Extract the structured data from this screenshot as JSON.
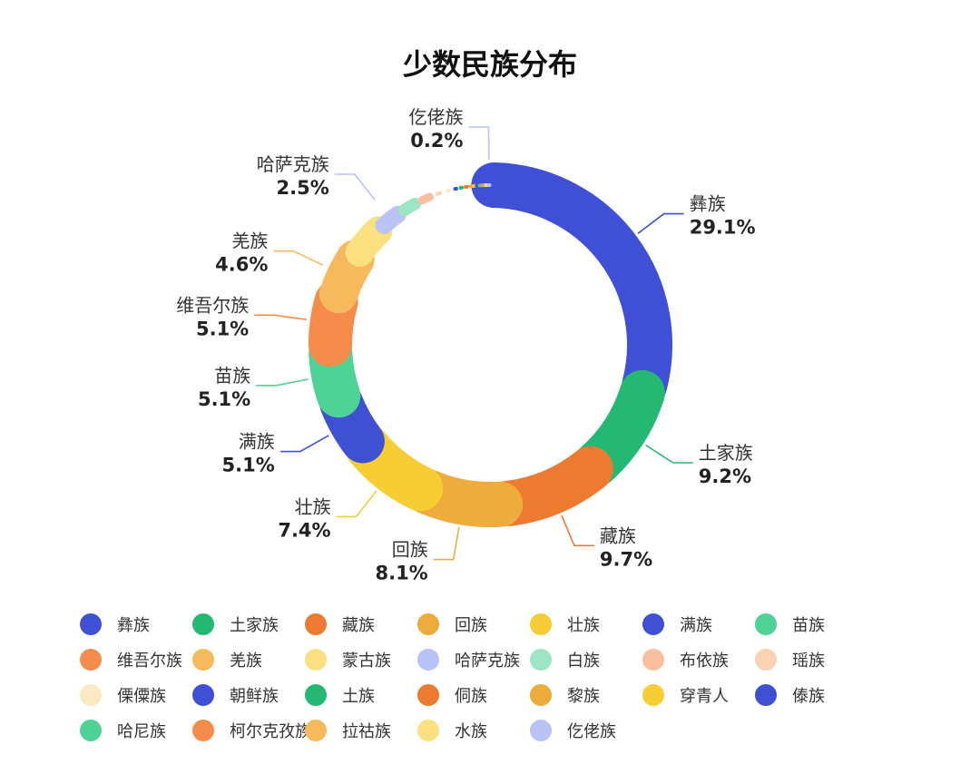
{
  "chart_data": {
    "type": "pie",
    "variant": "donut",
    "title": "少数民族分布",
    "categories": [
      "彝族",
      "土家族",
      "藏族",
      "回族",
      "壮族",
      "满族",
      "苗族",
      "维吾尔族",
      "羌族",
      "蒙古族",
      "哈萨克族",
      "白族",
      "布依族",
      "瑶族",
      "傈僳族",
      "朝鲜族",
      "土族",
      "侗族",
      "黎族",
      "穿青人",
      "傣族",
      "哈尼族",
      "柯尔克孜族",
      "拉祜族",
      "水族",
      "仡佬族"
    ],
    "values": [
      29.1,
      9.2,
      9.7,
      8.1,
      7.4,
      5.1,
      5.1,
      5.1,
      4.6,
      3.6,
      2.5,
      2.0,
      1.6,
      1.1,
      0.9,
      0.6,
      0.5,
      0.5,
      0.4,
      0.3,
      0.3,
      0.3,
      0.2,
      0.2,
      0.2,
      0.2
    ],
    "data_labels": [
      {
        "name": "彝族",
        "value_text": "29.1%",
        "index": 0
      },
      {
        "name": "土家族",
        "value_text": "9.2%",
        "index": 1
      },
      {
        "name": "藏族",
        "value_text": "9.7%",
        "index": 2
      },
      {
        "name": "回族",
        "value_text": "8.1%",
        "index": 3
      },
      {
        "name": "壮族",
        "value_text": "7.4%",
        "index": 4
      },
      {
        "name": "满族",
        "value_text": "5.1%",
        "index": 5
      },
      {
        "name": "苗族",
        "value_text": "5.1%",
        "index": 6
      },
      {
        "name": "维吾尔族",
        "value_text": "5.1%",
        "index": 7
      },
      {
        "name": "羌族",
        "value_text": "4.6%",
        "index": 8
      },
      {
        "name": "哈萨克族",
        "value_text": "2.5%",
        "index": 10
      },
      {
        "name": "仡佬族",
        "value_text": "0.2%",
        "index": 25
      }
    ],
    "colors": [
      "#3f4fd6",
      "#25b873",
      "#ec7a30",
      "#edac3c",
      "#f7cd34",
      "#4050d2",
      "#4ed295",
      "#f58c4c",
      "#f6ba5c",
      "#fbe07f",
      "#b9c3f6",
      "#9ce6c4",
      "#f9bf9e",
      "#fbd3b4",
      "#fbe9c3",
      "#3f4fd6",
      "#25b873",
      "#ec7a30",
      "#edac3c",
      "#f7cd34",
      "#4050d2",
      "#4ed295",
      "#f58c4c",
      "#f6ba5c",
      "#fbe07f",
      "#b9c3f6"
    ],
    "legend": {
      "placement": "bottom",
      "columns": 7
    }
  }
}
